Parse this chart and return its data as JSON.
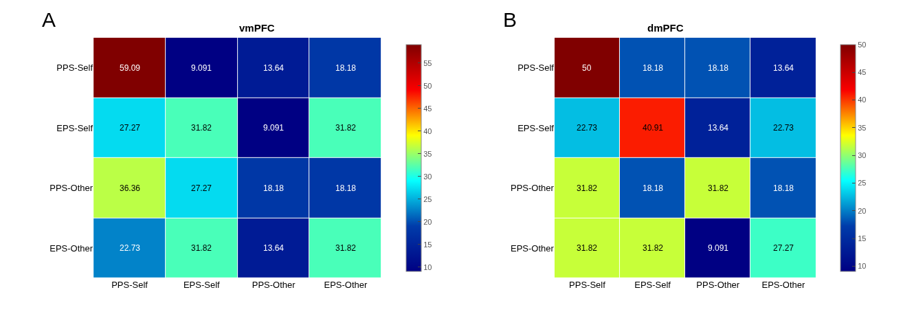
{
  "chart_data": [
    {
      "type": "heatmap",
      "title": "vmPFC",
      "annotations": [
        "A"
      ],
      "categories": [
        "PPS-Self",
        "EPS-Self",
        "PPS-Other",
        "EPS-Other"
      ],
      "y_categories": [
        "PPS-Self",
        "EPS-Self",
        "PPS-Other",
        "EPS-Other"
      ],
      "cells": [
        [
          59.09,
          9.091,
          13.64,
          18.18
        ],
        [
          27.27,
          31.82,
          9.091,
          31.82
        ],
        [
          36.36,
          27.27,
          18.18,
          18.18
        ],
        [
          22.73,
          31.82,
          13.64,
          31.82
        ]
      ],
      "clim": [
        9.091,
        59.09
      ],
      "cticks": [
        10,
        15,
        20,
        25,
        30,
        35,
        40,
        45,
        50,
        55
      ],
      "data_labels": true
    },
    {
      "type": "heatmap",
      "title": "dmPFC",
      "annotations": [
        "B"
      ],
      "categories": [
        "PPS-Self",
        "EPS-Self",
        "PPS-Other",
        "EPS-Other"
      ],
      "y_categories": [
        "PPS-Self",
        "EPS-Self",
        "PPS-Other",
        "EPS-Other"
      ],
      "cells": [
        [
          50,
          18.18,
          18.18,
          13.64
        ],
        [
          22.73,
          40.91,
          13.64,
          22.73
        ],
        [
          31.82,
          18.18,
          31.82,
          18.18
        ],
        [
          31.82,
          31.82,
          9.091,
          27.27
        ]
      ],
      "clim": [
        9.091,
        50
      ],
      "cticks": [
        10,
        15,
        20,
        25,
        30,
        35,
        40,
        45,
        50
      ],
      "data_labels": true
    }
  ]
}
